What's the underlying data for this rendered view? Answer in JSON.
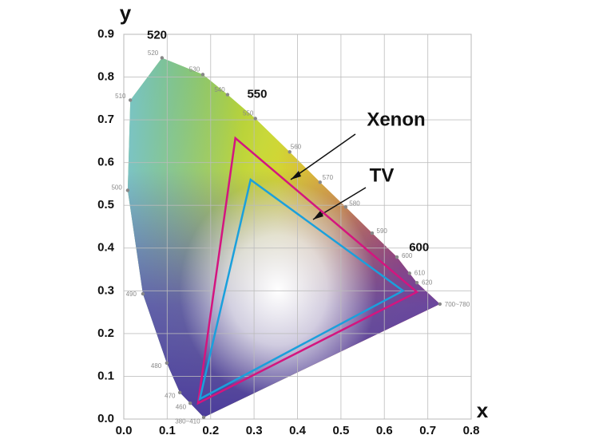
{
  "chart_data": {
    "type": "chromaticity",
    "x_label": "x",
    "y_label": "y",
    "xlim": [
      0,
      0.8
    ],
    "ylim": [
      0,
      0.9
    ],
    "xticks": [
      {
        "value": 0,
        "label": "0.0"
      },
      0.1,
      0.2,
      0.3,
      0.4,
      0.5,
      0.6,
      0.7,
      0.8
    ],
    "yticks": [
      {
        "value": 0,
        "label": "0.0"
      },
      0.1,
      0.2,
      0.3,
      0.4,
      0.5,
      0.6,
      0.7,
      0.8,
      0.9
    ],
    "grid": true,
    "locus": {
      "labels": [
        "380~410",
        "460",
        "470",
        "480",
        "490",
        "500",
        "510",
        "520",
        "530",
        "540",
        "550",
        "560",
        "570",
        "580",
        "590",
        "600",
        "610",
        "620",
        "700~780"
      ],
      "x": [
        0.184,
        0.153,
        0.129,
        0.099,
        0.044,
        0.009,
        0.015,
        0.088,
        0.182,
        0.239,
        0.303,
        0.382,
        0.452,
        0.511,
        0.572,
        0.629,
        0.658,
        0.675,
        0.728
      ],
      "y": [
        0.004,
        0.037,
        0.062,
        0.131,
        0.293,
        0.535,
        0.746,
        0.845,
        0.806,
        0.759,
        0.703,
        0.625,
        0.554,
        0.496,
        0.435,
        0.379,
        0.341,
        0.319,
        0.269
      ]
    },
    "major_labels": [
      "520",
      "550",
      "600"
    ],
    "series": [
      {
        "name": "Xenon",
        "color": "#d4157f",
        "x": [
          0.675,
          0.257,
          0.171
        ],
        "y": [
          0.297,
          0.657,
          0.037
        ]
      },
      {
        "name": "TV",
        "color": "#1aa0dc",
        "x": [
          0.643,
          0.292,
          0.175
        ],
        "y": [
          0.3,
          0.56,
          0.047
        ]
      }
    ]
  }
}
